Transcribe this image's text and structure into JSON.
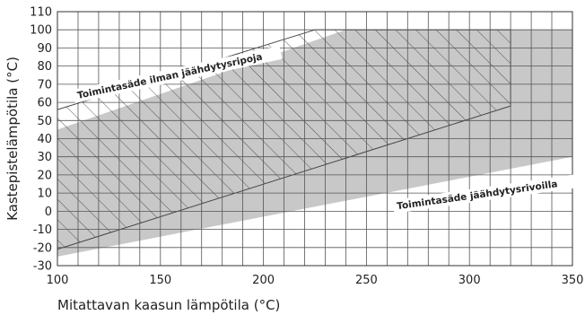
{
  "chart_data": {
    "type": "area",
    "xlabel": "Mitattavan kaasun lämpötila (°C)",
    "ylabel": "Kastepistelämpötila (°C)",
    "xlim": [
      100,
      350
    ],
    "ylim": [
      -30,
      110
    ],
    "x_ticks": [
      100,
      150,
      200,
      250,
      300,
      350
    ],
    "y_ticks": [
      -30,
      -20,
      -10,
      0,
      10,
      20,
      30,
      40,
      50,
      60,
      70,
      80,
      90,
      100,
      110
    ],
    "grid_minor_x": 10,
    "grid_minor_y": 10,
    "grid": true,
    "colors": {
      "shaded": "#c8c8c8",
      "hatch": "#333333",
      "grid": "#555555",
      "boundary": "#444444"
    },
    "regions": [
      {
        "name": "Toimintasäde jäähdytysrivoilla",
        "style": "shaded",
        "label_angle": -8,
        "polygon": [
          [
            100,
            -25
          ],
          [
            350,
            30
          ],
          [
            350,
            100
          ],
          [
            240,
            100
          ],
          [
            100,
            45
          ]
        ]
      },
      {
        "name": "Toimintasäde ilman jäähdytysripoja",
        "style": "hatched",
        "label_angle": -12,
        "polygon": [
          [
            100,
            -21
          ],
          [
            320,
            58
          ],
          [
            320,
            100
          ],
          [
            225,
            100
          ],
          [
            100,
            56
          ]
        ]
      }
    ]
  }
}
